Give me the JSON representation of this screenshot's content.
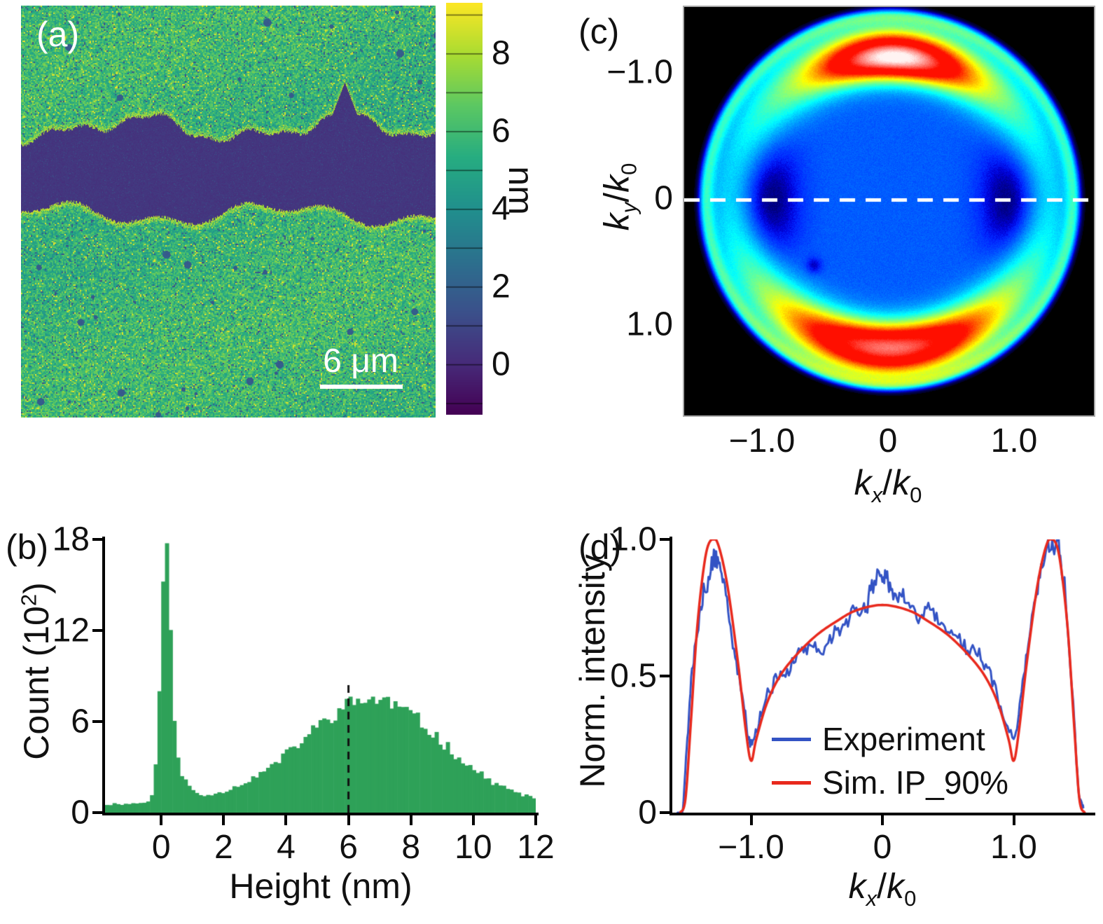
{
  "panel_a": {
    "label": "(a)",
    "scalebar": "6 μm",
    "colorbar_unit": "nm",
    "colorbar_ticks": [
      "0",
      "2",
      "4",
      "6",
      "8"
    ]
  },
  "panel_b": {
    "label": "(b)",
    "xlabel": "Height (nm)",
    "ylabel_parts": {
      "pre": "Count (10",
      "sup": "2",
      "post": ")"
    },
    "xticks": [
      "0",
      "2",
      "4",
      "6",
      "8",
      "10",
      "12"
    ],
    "yticks": [
      "0",
      "6",
      "12",
      "18"
    ]
  },
  "panel_c": {
    "label": "(c)",
    "ylabel_parts": {
      "k1": "k",
      "s1": "y",
      "slash": "/",
      "k2": "k",
      "s2": "0"
    },
    "xlabel_parts": {
      "k1": "k",
      "s1": "x",
      "slash": "/",
      "k2": "k",
      "s2": "0"
    },
    "yticks": [
      "−1.0",
      "0",
      "1.0"
    ],
    "xticks": [
      "−1.0",
      "0",
      "1.0"
    ]
  },
  "panel_d": {
    "label": "(d)",
    "ylabel": "Norm. intensity",
    "xlabel_parts": {
      "k1": "k",
      "s1": "x",
      "slash": "/",
      "k2": "k",
      "s2": "0"
    },
    "yticks": [
      "0",
      "0.5",
      "1.0"
    ],
    "xticks": [
      "−1.0",
      "0",
      "1.0"
    ],
    "legend": [
      {
        "label": "Experiment",
        "color": "#3353c4"
      },
      {
        "label": "Sim. IP_90%",
        "color": "#e8291d"
      }
    ]
  },
  "chart_data": [
    {
      "id": "a",
      "type": "heatmap",
      "colormap": "viridis",
      "colorbar": {
        "label": "nm",
        "ticks": [
          0,
          2,
          4,
          6,
          8
        ],
        "range": [
          -1.3,
          9.3
        ]
      },
      "scale_bar": {
        "label": "6 μm"
      },
      "film_height_nm": 6,
      "scratch_height_nm": 0,
      "noise_nm": 1.3
    },
    {
      "id": "b",
      "type": "bar",
      "xlabel": "Height (nm)",
      "ylabel": "Count (10^2)",
      "xlim": [
        -1.8,
        12
      ],
      "ylim": [
        0,
        18
      ],
      "xticks": [
        0,
        2,
        4,
        6,
        8,
        10,
        12
      ],
      "yticks": [
        0,
        6,
        12,
        18
      ],
      "bar_color": "#2ea158",
      "bin_width": 0.12,
      "baseline": 0.5,
      "peaks": [
        {
          "center": 0.15,
          "sigma": 0.24,
          "amplitude": 15.0
        },
        {
          "center": 0.5,
          "sigma": 0.5,
          "amplitude": 1.6
        },
        {
          "center": 6.8,
          "sigma": 3.0,
          "amplitude": 6.0
        },
        {
          "center": 6.0,
          "sigma": 4.5,
          "amplitude": 1.0
        }
      ],
      "dashed_line": {
        "x": 6,
        "top": 8.4
      }
    },
    {
      "id": "c",
      "type": "heatmap",
      "xlabel": "kx/k0",
      "ylabel": "ky/k0",
      "xticks": [
        -1.0,
        0,
        1.0
      ],
      "yticks": [
        -1.0,
        0,
        1.0
      ],
      "k_range": [
        -1.63,
        1.63
      ],
      "features": {
        "disk_radius_k": 1.5,
        "rim_radius_k": 1.46,
        "hot_arc_radius_k": 1.13,
        "hot_arc_angles_deg": [
          -90,
          90
        ],
        "dark_lobe_centers_kx": [
          -0.97,
          0.97
        ],
        "dashed_line_ky": 0
      }
    },
    {
      "id": "d",
      "type": "line",
      "xlabel": "kx/k0",
      "ylabel": "Norm. intensity",
      "xlim": [
        -1.6,
        1.6
      ],
      "ylim": [
        0,
        1.0
      ],
      "xticks": [
        -1.0,
        0,
        1.0
      ],
      "yticks": [
        0,
        0.5,
        1.0
      ],
      "series": [
        {
          "name": "Experiment",
          "color": "#3353c4",
          "noise": 0.035,
          "points": [
            [
              -1.56,
              0.0
            ],
            [
              -1.52,
              0.02
            ],
            [
              -1.48,
              0.3
            ],
            [
              -1.43,
              0.62
            ],
            [
              -1.37,
              0.82
            ],
            [
              -1.3,
              0.9
            ],
            [
              -1.26,
              0.93
            ],
            [
              -1.2,
              0.85
            ],
            [
              -1.13,
              0.62
            ],
            [
              -1.06,
              0.4
            ],
            [
              -1.0,
              0.26
            ],
            [
              -0.94,
              0.33
            ],
            [
              -0.85,
              0.45
            ],
            [
              -0.75,
              0.52
            ],
            [
              -0.65,
              0.57
            ],
            [
              -0.55,
              0.6
            ],
            [
              -0.45,
              0.63
            ],
            [
              -0.35,
              0.68
            ],
            [
              -0.25,
              0.72
            ],
            [
              -0.15,
              0.76
            ],
            [
              -0.08,
              0.8
            ],
            [
              0.0,
              0.82
            ],
            [
              0.05,
              0.84
            ],
            [
              0.12,
              0.8
            ],
            [
              0.2,
              0.78
            ],
            [
              0.3,
              0.74
            ],
            [
              0.4,
              0.7
            ],
            [
              0.5,
              0.66
            ],
            [
              0.6,
              0.62
            ],
            [
              0.7,
              0.57
            ],
            [
              0.8,
              0.5
            ],
            [
              0.9,
              0.38
            ],
            [
              1.0,
              0.27
            ],
            [
              1.06,
              0.42
            ],
            [
              1.13,
              0.66
            ],
            [
              1.2,
              0.88
            ],
            [
              1.27,
              1.0
            ],
            [
              1.33,
              0.98
            ],
            [
              1.38,
              0.85
            ],
            [
              1.44,
              0.5
            ],
            [
              1.49,
              0.1
            ],
            [
              1.53,
              0.02
            ]
          ]
        },
        {
          "name": "Sim. IP_90%",
          "color": "#e8291d",
          "points": [
            [
              -1.54,
              0.0
            ],
            [
              -1.5,
              0.05
            ],
            [
              -1.46,
              0.32
            ],
            [
              -1.41,
              0.68
            ],
            [
              -1.35,
              0.93
            ],
            [
              -1.3,
              1.0
            ],
            [
              -1.25,
              0.98
            ],
            [
              -1.18,
              0.83
            ],
            [
              -1.1,
              0.55
            ],
            [
              -1.04,
              0.3
            ],
            [
              -1.0,
              0.19
            ],
            [
              -0.96,
              0.27
            ],
            [
              -0.88,
              0.4
            ],
            [
              -0.78,
              0.5
            ],
            [
              -0.65,
              0.58
            ],
            [
              -0.5,
              0.65
            ],
            [
              -0.35,
              0.7
            ],
            [
              -0.2,
              0.74
            ],
            [
              0.0,
              0.76
            ],
            [
              0.2,
              0.74
            ],
            [
              0.35,
              0.7
            ],
            [
              0.5,
              0.65
            ],
            [
              0.65,
              0.58
            ],
            [
              0.78,
              0.5
            ],
            [
              0.88,
              0.4
            ],
            [
              0.96,
              0.27
            ],
            [
              1.0,
              0.19
            ],
            [
              1.04,
              0.3
            ],
            [
              1.1,
              0.55
            ],
            [
              1.18,
              0.83
            ],
            [
              1.25,
              0.98
            ],
            [
              1.3,
              1.0
            ],
            [
              1.35,
              0.93
            ],
            [
              1.41,
              0.68
            ],
            [
              1.46,
              0.32
            ],
            [
              1.5,
              0.05
            ],
            [
              1.54,
              0.0
            ]
          ]
        }
      ]
    }
  ]
}
